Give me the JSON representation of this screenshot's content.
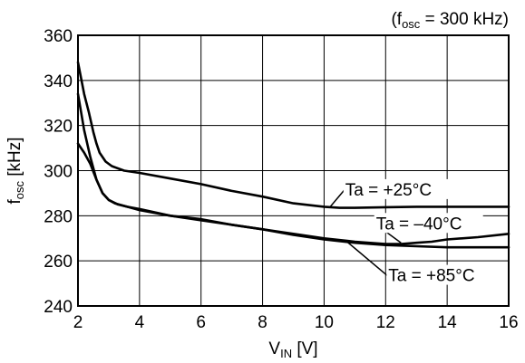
{
  "chart_data": {
    "type": "line",
    "title": "",
    "annotation": {
      "prefix": "(f",
      "sub": "osc",
      "suffix": " = 300 kHz)"
    },
    "xlabel": {
      "main": "V",
      "sub": "IN",
      "suffix": " [V]"
    },
    "ylabel": {
      "main": "f",
      "sub": "osc",
      "suffix": " [kHz]"
    },
    "xlim": [
      2,
      16
    ],
    "ylim": [
      240,
      360
    ],
    "xticks": [
      2,
      4,
      6,
      8,
      10,
      12,
      14,
      16
    ],
    "yticks": [
      240,
      260,
      280,
      300,
      320,
      340,
      360
    ],
    "grid": true,
    "series": [
      {
        "name": "Ta = +25°C",
        "x": [
          2.0,
          2.1,
          2.2,
          2.35,
          2.5,
          2.6,
          2.7,
          2.9,
          3.1,
          3.5,
          4.0,
          5.0,
          6.0,
          7.0,
          8.0,
          9.0,
          10.0,
          10.5,
          11.0,
          12.0,
          13.0,
          14.0,
          15.0,
          16.0
        ],
        "values": [
          348,
          341,
          334,
          326,
          317,
          312,
          308,
          304,
          302,
          300,
          299,
          296.5,
          294,
          291,
          288.5,
          285.5,
          284,
          283.5,
          283.5,
          283.8,
          284,
          284,
          284,
          284
        ]
      },
      {
        "name": "Ta = -40°C",
        "x": [
          2.0,
          2.1,
          2.2,
          2.4,
          2.6,
          2.8,
          3.0,
          3.3,
          3.6,
          4.0,
          5.0,
          6.0,
          7.0,
          8.0,
          9.0,
          10.0,
          11.0,
          12.0,
          12.5,
          13.0,
          13.5,
          14.0,
          15.0,
          16.0
        ],
        "values": [
          334,
          326,
          318,
          306,
          296,
          290,
          287,
          285,
          284,
          282.5,
          280,
          278,
          276,
          274,
          272,
          270,
          268.5,
          267.5,
          267.5,
          268,
          268.5,
          269.5,
          270.5,
          272
        ]
      },
      {
        "name": "Ta = +85°C",
        "x": [
          2.0,
          2.2,
          2.4,
          2.6,
          2.8,
          3.0,
          3.2,
          3.6,
          4.0,
          5.0,
          6.0,
          7.0,
          8.0,
          9.0,
          10.0,
          11.0,
          12.0,
          13.0,
          14.0,
          15.0,
          16.0
        ],
        "values": [
          312,
          308,
          303,
          296,
          290,
          287,
          285.5,
          284,
          283,
          280,
          278.5,
          276,
          274,
          271.5,
          269.5,
          268,
          267,
          266.5,
          266,
          266,
          266
        ]
      }
    ],
    "labels": [
      {
        "series": 0,
        "main": "Ta = +25",
        "unit": "°C",
        "at_x": 10.2,
        "at_y": 284,
        "text_x": 10.6,
        "text_y": 289
      },
      {
        "series": 1,
        "main": "Ta = –40",
        "unit": "°C",
        "at_x": 12.5,
        "at_y": 268,
        "text_x": 11.6,
        "text_y": 274
      },
      {
        "series": 2,
        "main": "Ta = +85",
        "unit": "°C",
        "at_x": 10.7,
        "at_y": 269,
        "text_x": 12.0,
        "text_y": 251
      }
    ]
  }
}
